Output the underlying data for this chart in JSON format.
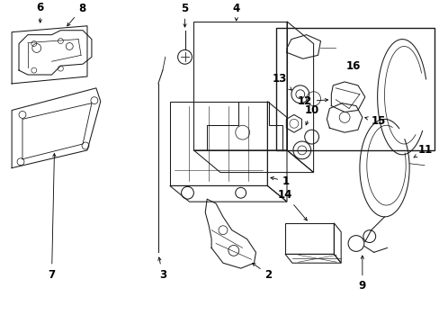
{
  "bg_color": "#ffffff",
  "line_color": "#1a1a1a",
  "fig_width": 4.89,
  "fig_height": 3.6,
  "dpi": 100,
  "font_size": 8.5,
  "lw": 0.75,
  "arrow_lw": 0.6
}
